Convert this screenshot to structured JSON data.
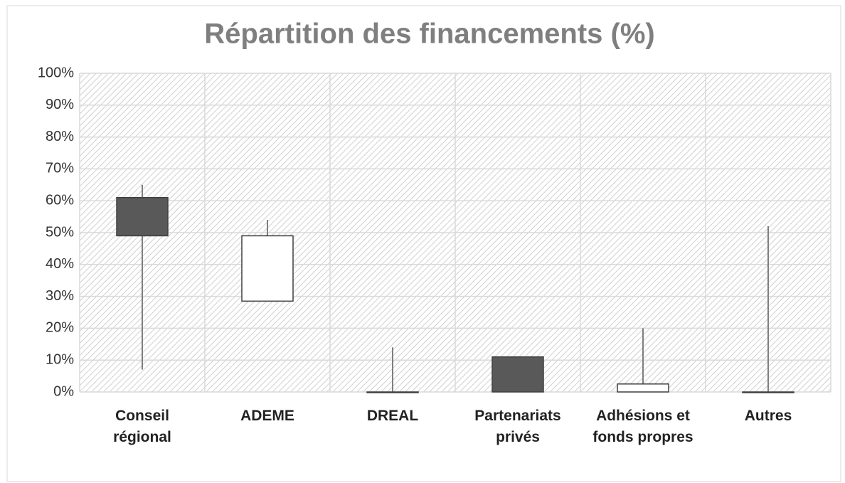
{
  "chart_data": {
    "type": "candlestick",
    "title": "Répartition des financements (%)",
    "categories": [
      "Conseil régional",
      "ADEME",
      "DREAL",
      "Partenariats privés",
      "Adhésions et fonds propres",
      "Autres"
    ],
    "open": [
      61,
      28.5,
      0,
      11,
      0,
      0
    ],
    "high": [
      65,
      54,
      14,
      11,
      20,
      52
    ],
    "low": [
      7,
      28.5,
      0,
      0,
      0,
      0
    ],
    "close": [
      49,
      49,
      0,
      0,
      2.5,
      0
    ],
    "up_color": "#ffffff",
    "down_color": "#595959",
    "line_color": "#7f7f7f",
    "ylim": [
      0,
      100
    ],
    "yticks": [
      {
        "value": 0,
        "label": "0%"
      },
      {
        "value": 10,
        "label": "10%"
      },
      {
        "value": 20,
        "label": "20%"
      },
      {
        "value": 30,
        "label": "30%"
      },
      {
        "value": 40,
        "label": "40%"
      },
      {
        "value": 50,
        "label": "50%"
      },
      {
        "value": 60,
        "label": "60%"
      },
      {
        "value": 70,
        "label": "70%"
      },
      {
        "value": 80,
        "label": "80%"
      },
      {
        "value": 90,
        "label": "90%"
      },
      {
        "value": 100,
        "label": "100%"
      }
    ],
    "grid": true
  }
}
